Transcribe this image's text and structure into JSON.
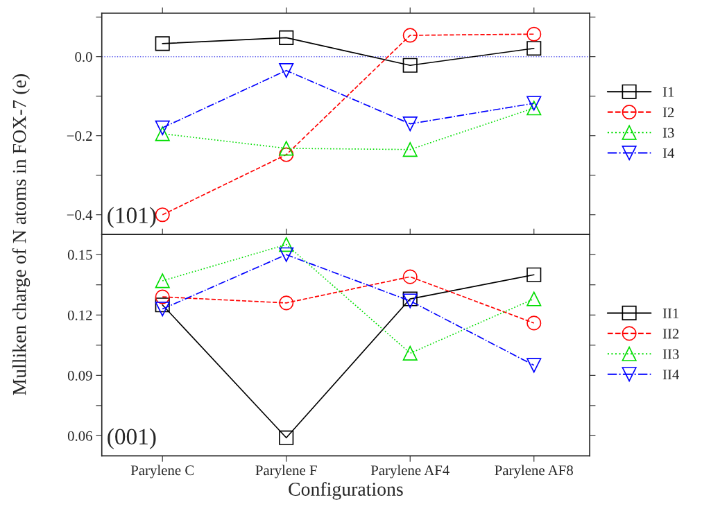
{
  "chart_data": [
    {
      "type": "line",
      "ylabel": "Mulliken charge of N atoms in FOX-7 (e)",
      "ylim": [
        -0.45,
        0.11
      ],
      "yticks": [
        {
          "value": -0.4,
          "label": "−0.4"
        },
        {
          "value": -0.3,
          "label": null
        },
        {
          "value": -0.2,
          "label": "−0.2"
        },
        {
          "value": -0.1,
          "label": null
        },
        {
          "value": 0.0,
          "label": "0.0"
        },
        {
          "value": 0.1,
          "label": null
        }
      ],
      "tick_labels": "y",
      "legend": "right",
      "grid": false,
      "annotations": [
        "(101)"
      ],
      "ref_lines": [
        {
          "axis": "y",
          "value": 0.0,
          "label": null,
          "color": "#6666ee",
          "line_style": "dotted"
        }
      ],
      "series": [
        {
          "name": "I1",
          "color": "#000000",
          "marker": "square",
          "line_style": "solid",
          "values": [
            0.033,
            0.048,
            -0.022,
            0.021
          ]
        },
        {
          "name": "I2",
          "color": "#ff0000",
          "marker": "circle",
          "line_style": "dashed",
          "values": [
            -0.4,
            -0.248,
            0.054,
            0.057
          ]
        },
        {
          "name": "I3",
          "color": "#00dd00",
          "marker": "triangle",
          "line_style": "dotted",
          "values": [
            -0.195,
            -0.232,
            -0.235,
            -0.13
          ]
        },
        {
          "name": "I4",
          "color": "#0000ff",
          "marker": "triangle_down",
          "line_style": "dashdot",
          "values": [
            -0.18,
            -0.035,
            -0.17,
            -0.118
          ]
        }
      ]
    },
    {
      "type": "line",
      "categories": [
        "Parylene C",
        "Parylene F",
        "Parylene AF4",
        "Parylene AF8"
      ],
      "xlabel": "Configurations",
      "ylim": [
        0.05,
        0.16
      ],
      "yticks": [
        {
          "value": 0.06,
          "label": "0.06"
        },
        {
          "value": 0.075,
          "label": null
        },
        {
          "value": 0.09,
          "label": "0.09"
        },
        {
          "value": 0.105,
          "label": null
        },
        {
          "value": 0.12,
          "label": "0.12"
        },
        {
          "value": 0.135,
          "label": null
        },
        {
          "value": 0.15,
          "label": "0.15"
        }
      ],
      "legend": "right",
      "grid": false,
      "annotations": [
        "(001)"
      ],
      "series": [
        {
          "name": "II1",
          "color": "#000000",
          "marker": "square",
          "line_style": "solid",
          "values": [
            0.125,
            0.059,
            0.128,
            0.14
          ]
        },
        {
          "name": "II2",
          "color": "#ff0000",
          "marker": "circle",
          "line_style": "dashed",
          "values": [
            0.129,
            0.126,
            0.139,
            0.116
          ]
        },
        {
          "name": "II3",
          "color": "#00dd00",
          "marker": "triangle",
          "line_style": "dotted",
          "values": [
            0.137,
            0.155,
            0.101,
            0.128
          ]
        },
        {
          "name": "II4",
          "color": "#0000ff",
          "marker": "triangle_down",
          "line_style": "dashdot",
          "values": [
            0.123,
            0.15,
            0.127,
            0.095
          ]
        }
      ]
    }
  ]
}
